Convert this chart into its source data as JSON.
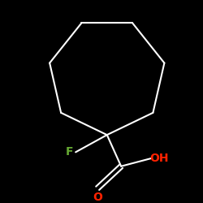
{
  "background_color": "#000000",
  "bond_color": "#ffffff",
  "F_color": "#66aa33",
  "O_color": "#ff2200",
  "OH_color": "#ff2200",
  "F_label": "F",
  "O_label": "O",
  "OH_label": "OH",
  "fig_size": [
    2.5,
    2.5
  ],
  "dpi": 100,
  "lw": 1.5,
  "font_size": 10
}
